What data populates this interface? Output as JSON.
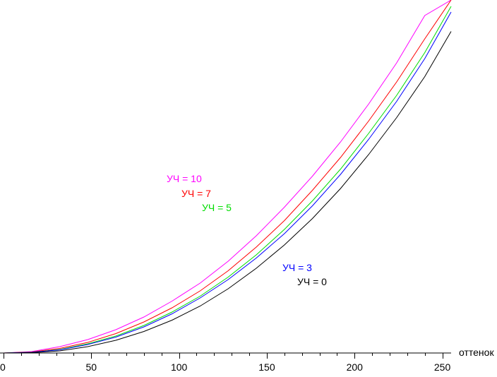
{
  "chart_data": {
    "type": "line",
    "title": "",
    "xlabel": "оттенок",
    "ylabel": "",
    "xlim": [
      0,
      255
    ],
    "ylim": [
      0,
      100
    ],
    "x_ticks": [
      0,
      50,
      100,
      150,
      200,
      250
    ],
    "grid": false,
    "series": [
      {
        "name": "УЧ = 10",
        "color": "#ff00ff",
        "x": [
          0,
          16,
          32,
          48,
          64,
          80,
          96,
          112,
          128,
          144,
          160,
          176,
          192,
          208,
          224,
          240,
          255
        ],
        "y": [
          0,
          0.4,
          1.8,
          3.8,
          6.6,
          10.2,
          14.7,
          19.8,
          26.0,
          33.2,
          41.3,
          50.1,
          59.8,
          70.5,
          82.2,
          95.6,
          100
        ]
      },
      {
        "name": "УЧ = 7",
        "color": "#ff0000",
        "x": [
          0,
          16,
          32,
          48,
          64,
          80,
          96,
          112,
          128,
          144,
          160,
          176,
          192,
          208,
          224,
          240,
          255
        ],
        "y": [
          0,
          0.3,
          1.3,
          3.0,
          5.5,
          8.8,
          12.8,
          17.6,
          23.3,
          30.0,
          37.5,
          46.1,
          55.4,
          65.7,
          76.8,
          89.0,
          100
        ]
      },
      {
        "name": "УЧ = 5",
        "color": "#00dd00",
        "x": [
          0,
          16,
          32,
          48,
          64,
          80,
          96,
          112,
          128,
          144,
          160,
          176,
          192,
          208,
          224,
          240,
          255
        ],
        "y": [
          0,
          0.2,
          1.0,
          2.6,
          4.8,
          7.8,
          11.6,
          16.1,
          21.5,
          27.8,
          35.0,
          43.1,
          52.1,
          62.2,
          73.0,
          85.1,
          98.2
        ]
      },
      {
        "name": "УЧ = 3",
        "color": "#0000ff",
        "x": [
          0,
          16,
          32,
          48,
          64,
          80,
          96,
          112,
          128,
          144,
          160,
          176,
          192,
          208,
          224,
          240,
          255
        ],
        "y": [
          0,
          0.2,
          0.9,
          2.4,
          4.5,
          7.4,
          11.1,
          15.6,
          20.8,
          26.9,
          33.8,
          41.7,
          50.6,
          60.5,
          71.3,
          83.4,
          96.6
        ]
      },
      {
        "name": "УЧ = 0",
        "color": "#000000",
        "x": [
          0,
          16,
          32,
          48,
          64,
          80,
          96,
          112,
          128,
          144,
          160,
          176,
          192,
          208,
          224,
          240,
          255
        ],
        "y": [
          0,
          0.1,
          0.6,
          1.8,
          3.6,
          6.1,
          9.3,
          13.3,
          18.2,
          24.0,
          30.6,
          38.1,
          46.6,
          56.2,
          66.7,
          78.3,
          91.1
        ]
      }
    ]
  }
}
